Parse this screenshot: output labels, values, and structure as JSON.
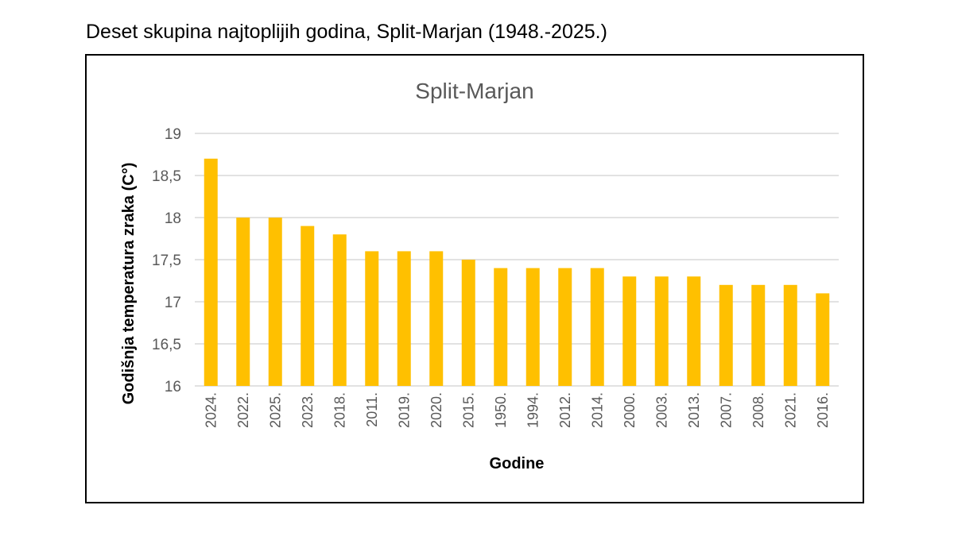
{
  "heading": "Deset skupina najtoplijih godina, Split-Marjan (1948.-2025.)",
  "chart_data": {
    "type": "bar",
    "title": "Split-Marjan",
    "xlabel": "Godine",
    "ylabel": "Godišnja temperatura zraka (C°)",
    "ylim": [
      16,
      19
    ],
    "yticks": [
      16,
      16.5,
      17,
      17.5,
      18,
      18.5,
      19
    ],
    "ytick_labels": [
      "16",
      "16,5",
      "17",
      "17,5",
      "18",
      "18,5",
      "19"
    ],
    "grid": true,
    "categories": [
      "2024.",
      "2022.",
      "2025.",
      "2023.",
      "2018.",
      "2011.",
      "2019.",
      "2020.",
      "2015.",
      "1950.",
      "1994.",
      "2012.",
      "2014.",
      "2000.",
      "2003.",
      "2013.",
      "2007.",
      "2008.",
      "2021.",
      "2016."
    ],
    "values": [
      18.7,
      18.0,
      18.0,
      17.9,
      17.8,
      17.6,
      17.6,
      17.6,
      17.5,
      17.4,
      17.4,
      17.4,
      17.4,
      17.3,
      17.3,
      17.3,
      17.2,
      17.2,
      17.2,
      17.1
    ],
    "bar_color": "#FFC000"
  }
}
